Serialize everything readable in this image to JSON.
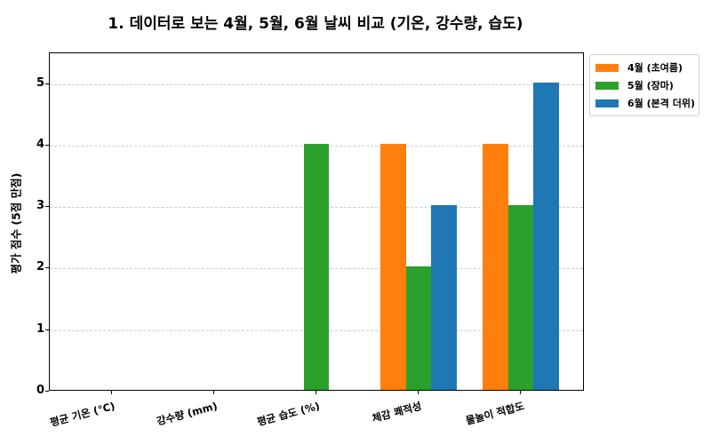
{
  "chart_data": {
    "type": "bar",
    "title": "1. 데이터로 보는 4월, 5월, 6월 날씨 비교 (기온, 강수량, 습도)",
    "xlabel": "",
    "ylabel": "평가 점수 (5점 만점)",
    "ylim": [
      0,
      5.5
    ],
    "yticks": [
      "0",
      "1",
      "2",
      "3",
      "4",
      "5"
    ],
    "grid": true,
    "legend_position": "upper right outside",
    "categories": [
      "평균 기온 (°C)",
      "강수량 (mm)",
      "평균 습도 (%)",
      "체감 쾌적성",
      "물놀이 적합도"
    ],
    "series": [
      {
        "name": "4월 (초여름)",
        "color": "#ff7f0e",
        "values": [
          0,
          0,
          0,
          4,
          4
        ]
      },
      {
        "name": "5월 (장마)",
        "color": "#2ca02c",
        "values": [
          0,
          0,
          4,
          2,
          3
        ]
      },
      {
        "name": "6월 (본격 더위)",
        "color": "#1f77b4",
        "values": [
          0,
          0,
          0,
          3,
          5
        ]
      }
    ]
  }
}
